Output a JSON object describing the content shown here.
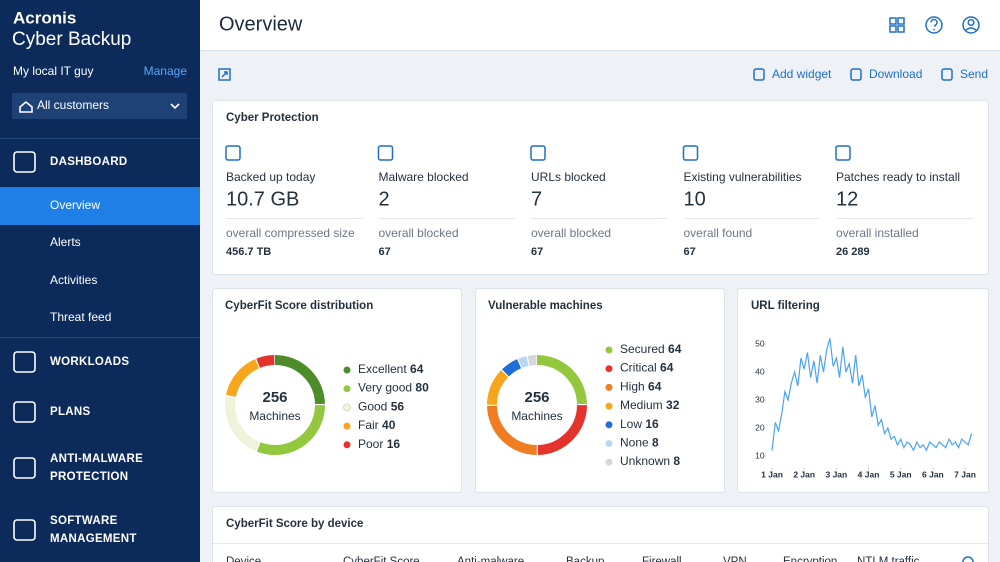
{
  "sidebar": {
    "brand": [
      "Acronis",
      "Cyber Backup"
    ],
    "account": "My local IT guy",
    "manage": "Manage",
    "customers": "All customers",
    "nav": [
      {
        "label": [
          "DASHBOARD"
        ],
        "children": [
          "Overview",
          "Alerts",
          "Activities",
          "Threat feed"
        ]
      },
      {
        "label": [
          "WORKLOADS"
        ]
      },
      {
        "label": [
          "PLANS"
        ]
      },
      {
        "label": [
          "ANTI-MALWARE",
          "PROTECTION"
        ]
      },
      {
        "label": [
          "SOFTWARE",
          "MANAGEMENT"
        ]
      }
    ]
  },
  "header": {
    "title": "Overview"
  },
  "toolbar": [
    "Add widget",
    "Download",
    "Send"
  ],
  "cyber_protection": {
    "title": "Cyber Protection",
    "items": [
      {
        "label": "Backed up today",
        "value": "10.7 GB",
        "sub_label": "overall compressed size",
        "sub_value": "456.7 TB"
      },
      {
        "label": "Malware blocked",
        "value": "2",
        "sub_label": "overall blocked",
        "sub_value": "67"
      },
      {
        "label": "URLs blocked",
        "value": "7",
        "sub_label": "overall blocked",
        "sub_value": "67"
      },
      {
        "label": "Existing vulnerabilities",
        "value": "10",
        "sub_label": "overall found",
        "sub_value": "67"
      },
      {
        "label": "Patches ready to install",
        "value": "12",
        "sub_label": "overall installed",
        "sub_value": "26 289"
      }
    ]
  },
  "cyberfit": {
    "title": "CyberFit Score distribution",
    "total": "256",
    "total_label": "Machines",
    "legend": [
      {
        "name": "Excellent",
        "value": 64,
        "color": "#4e8c2a"
      },
      {
        "name": "Very good",
        "value": 80,
        "color": "#93c83e"
      },
      {
        "name": "Good",
        "value": 56,
        "color": "#eef3dc"
      },
      {
        "name": "Fair",
        "value": 40,
        "color": "#f7a51c"
      },
      {
        "name": "Poor",
        "value": 16,
        "color": "#e2342d"
      }
    ]
  },
  "vulnerable": {
    "title": "Vulnerable machines",
    "total": "256",
    "total_label": "Machines",
    "legend": [
      {
        "name": "Secured",
        "value": 64,
        "color": "#93c83e"
      },
      {
        "name": "Critical",
        "value": 64,
        "color": "#e2342d"
      },
      {
        "name": "High",
        "value": 64,
        "color": "#f07d22"
      },
      {
        "name": "Medium",
        "value": 32,
        "color": "#f7a51c"
      },
      {
        "name": "Low",
        "value": 16,
        "color": "#1e6fd9"
      },
      {
        "name": "None",
        "value": 8,
        "color": "#b9d6f2"
      },
      {
        "name": "Unknown",
        "value": 8,
        "color": "#d3d7dc"
      }
    ]
  },
  "url_filtering": {
    "title": "URL filtering",
    "chart_data": {
      "type": "line",
      "color": "#4da3f0",
      "x": [
        1.0,
        1.1,
        1.2,
        1.3,
        1.4,
        1.5,
        1.6,
        1.7,
        1.8,
        1.9,
        2.0,
        2.1,
        2.2,
        2.3,
        2.4,
        2.5,
        2.6,
        2.7,
        2.8,
        2.9,
        3.0,
        3.1,
        3.2,
        3.3,
        3.4,
        3.5,
        3.6,
        3.7,
        3.8,
        3.9,
        4.0,
        4.1,
        4.2,
        4.3,
        4.4,
        4.5,
        4.6,
        4.7,
        4.8,
        4.9,
        5.0,
        5.1,
        5.2,
        5.3,
        5.4,
        5.5,
        5.6,
        5.7,
        5.8,
        5.9,
        6.0,
        6.1,
        6.2,
        6.3,
        6.4,
        6.5,
        6.6,
        6.7,
        6.8,
        6.9,
        7.0,
        7.1,
        7.2
      ],
      "values": [
        12,
        22,
        19,
        25,
        33,
        30,
        36,
        40,
        35,
        45,
        41,
        47,
        38,
        44,
        36,
        46,
        40,
        48,
        52,
        42,
        45,
        38,
        49,
        40,
        43,
        36,
        46,
        35,
        39,
        31,
        34,
        24,
        28,
        21,
        23,
        18,
        20,
        16,
        17,
        14,
        16,
        13,
        15,
        14,
        12,
        15,
        13,
        14,
        12,
        15,
        14,
        13,
        15,
        14,
        13,
        16,
        14,
        15,
        13,
        16,
        15,
        14,
        18
      ],
      "xlim": [
        0.8,
        7.3
      ],
      "ylim": [
        6,
        54
      ],
      "xticks": [
        {
          "value": 1,
          "label": "1 Jan"
        },
        {
          "value": 2,
          "label": "2 Jan"
        },
        {
          "value": 3,
          "label": "3 Jan"
        },
        {
          "value": 4,
          "label": "4 Jan"
        },
        {
          "value": 5,
          "label": "5 Jan"
        },
        {
          "value": 6,
          "label": "6 Jan"
        },
        {
          "value": 7,
          "label": "7 Jan"
        }
      ],
      "yticks": [
        10,
        20,
        30,
        40,
        50
      ]
    }
  },
  "device_table": {
    "title": "CyberFit Score by device",
    "columns": [
      "Device",
      "CyberFit Score",
      "Anti-malware",
      "Backup",
      "Firewall",
      "VPN",
      "Encryption",
      "NTLM traffic"
    ]
  }
}
